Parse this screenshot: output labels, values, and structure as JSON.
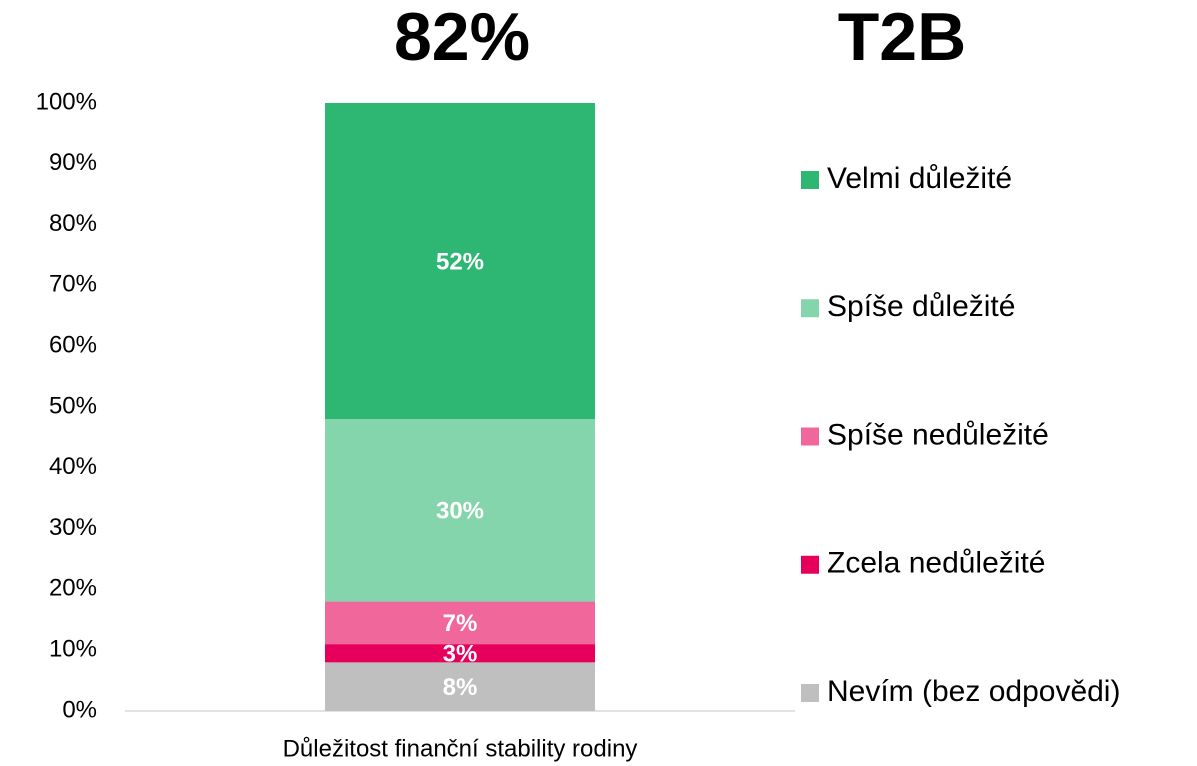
{
  "chart_data": {
    "type": "bar",
    "stacked": true,
    "annotations": [
      "82%",
      "T2B"
    ],
    "categories": [
      "Důležitost finanční stability rodiny"
    ],
    "series": [
      {
        "name": "Nevím (bez odpovědi)",
        "color": "#bfbfbf",
        "values": [
          8
        ],
        "value_labels": [
          "8%"
        ]
      },
      {
        "name": "Zcela nedůležité",
        "color": "#e6005c",
        "values": [
          3
        ],
        "value_labels": [
          "3%"
        ]
      },
      {
        "name": "Spíše nedůležité",
        "color": "#f0689b",
        "values": [
          7
        ],
        "value_labels": [
          "7%"
        ]
      },
      {
        "name": "Spíše důležité",
        "color": "#84d4ac",
        "values": [
          30
        ],
        "value_labels": [
          "30%"
        ]
      },
      {
        "name": "Velmi důležité",
        "color": "#2eb673",
        "values": [
          52
        ],
        "value_labels": [
          "52%"
        ]
      }
    ],
    "ylim": [
      0,
      100
    ],
    "yticks": [
      {
        "value": 0,
        "label": "0%"
      },
      {
        "value": 10,
        "label": "10%"
      },
      {
        "value": 20,
        "label": "20%"
      },
      {
        "value": 30,
        "label": "30%"
      },
      {
        "value": 40,
        "label": "40%"
      },
      {
        "value": 50,
        "label": "50%"
      },
      {
        "value": 60,
        "label": "60%"
      },
      {
        "value": 70,
        "label": "70%"
      },
      {
        "value": 80,
        "label": "80%"
      },
      {
        "value": 90,
        "label": "90%"
      },
      {
        "value": 100,
        "label": "100%"
      }
    ],
    "grid": false,
    "legend": "right"
  }
}
